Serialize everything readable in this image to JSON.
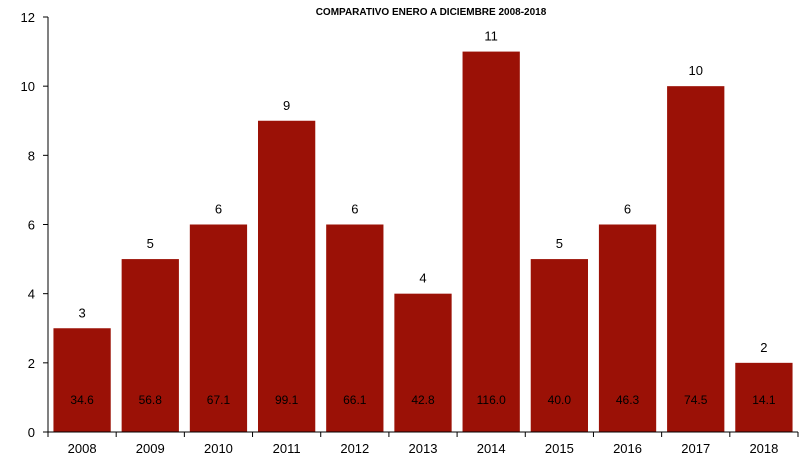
{
  "chart_data": {
    "type": "bar",
    "title": "COMPARATIVO ENERO A DICIEMBRE 2008-2018",
    "categories": [
      "2008",
      "2009",
      "2010",
      "2011",
      "2012",
      "2013",
      "2014",
      "2015",
      "2016",
      "2017",
      "2018"
    ],
    "values": [
      3,
      5,
      6,
      9,
      6,
      4,
      11,
      5,
      6,
      10,
      2
    ],
    "inner_labels": [
      "34.6",
      "56.8",
      "67.1",
      "99.1",
      "66.1",
      "42.8",
      "116.0",
      "40.0",
      "46.3",
      "74.5",
      "14.1"
    ],
    "ylim": [
      0,
      12
    ],
    "yticks": [
      "0",
      "2",
      "4",
      "6",
      "8",
      "10",
      "12"
    ],
    "bar_color": "#9b1106",
    "grid": false,
    "legend": "none"
  }
}
